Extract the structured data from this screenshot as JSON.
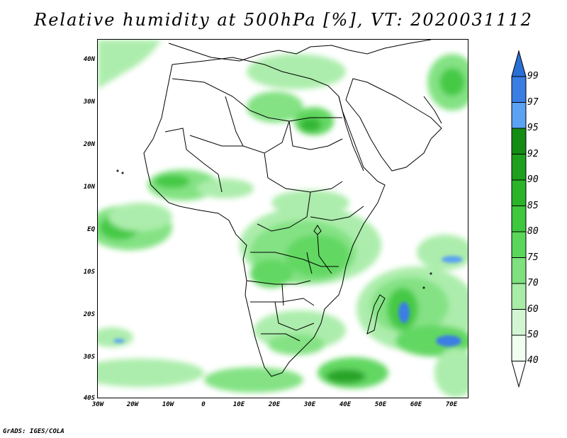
{
  "title": "Relative humidity at 500hPa [%], VT: 2020031112",
  "credit": "GrADS: IGES/COLA",
  "map": {
    "lat_labels": [
      "40N",
      "30N",
      "20N",
      "10N",
      "EQ",
      "10S",
      "20S",
      "30S",
      "40S"
    ],
    "lon_labels": [
      "30W",
      "20W",
      "10W",
      "0",
      "10E",
      "20E",
      "30E",
      "40E",
      "50E",
      "60E",
      "70E"
    ]
  },
  "colorbar": {
    "labels": [
      "99",
      "97",
      "95",
      "92",
      "90",
      "85",
      "80",
      "75",
      "70",
      "60",
      "50",
      "40"
    ],
    "colors": {
      "top_arrow": "#2a6fd6",
      "b97_99": "#3a7ee4",
      "b95_97": "#5ba2f2",
      "b92_95": "#148c14",
      "b90_92": "#1ea01e",
      "b85_90": "#2ab42a",
      "b80_85": "#3ec83e",
      "b75_80": "#5ad65a",
      "b70_75": "#7ee17e",
      "b60_70": "#a8eca8",
      "b50_60": "#d2f6d2",
      "b40_50": "#f0fff0"
    }
  }
}
